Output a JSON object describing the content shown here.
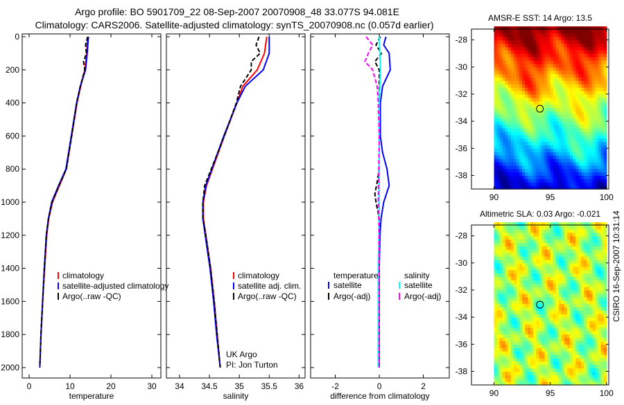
{
  "title_line1": "Argo profile: BO 5901709_22 08-Sep-2007 20070908_48 33.077S 94.081E",
  "title_line2": "Climatology: CARS2006. Satellite-adjusted climatology: synTS_20070908.nc (0.057d earlier)",
  "side_stamp": "CSIRO 16-Sep-2007 10:31:14",
  "colors": {
    "red": "#ff0000",
    "blue": "#0000ff",
    "black": "#000000",
    "cyan": "#00ffff",
    "magenta": "#ff00ff"
  },
  "chart_data": [
    {
      "type": "line",
      "xlabel": "temperature",
      "xlim": [
        -1.7,
        32.2
      ],
      "xticks": [
        0,
        10,
        20,
        30
      ],
      "ylim": [
        -17,
        2063
      ],
      "yticks": [
        0,
        200,
        400,
        600,
        800,
        1000,
        1200,
        1400,
        1600,
        1800,
        2000
      ],
      "y_reversed": true,
      "legend": [
        "climatology",
        "satellite-adjusted climatology",
        "Argo(..raw -QC)"
      ],
      "legend_placement": "bottom-right",
      "series": [
        {
          "name": "climatology",
          "color": "#ff0000",
          "dash": false,
          "depth": [
            0,
            100,
            200,
            300,
            400,
            600,
            800,
            900,
            1000,
            1100,
            1200,
            1400,
            1600,
            1800,
            2000
          ],
          "values": [
            14.3,
            14.1,
            13.6,
            12.6,
            11.7,
            10.4,
            9.1,
            7.4,
            5.7,
            4.8,
            4.3,
            3.8,
            3.3,
            2.9,
            2.6
          ]
        },
        {
          "name": "satellite-adjusted climatology",
          "color": "#0000ff",
          "dash": false,
          "depth": [
            0,
            100,
            200,
            300,
            400,
            600,
            800,
            900,
            1000,
            1100,
            1200,
            1400,
            1600,
            1800,
            2000
          ],
          "values": [
            14.5,
            14.2,
            13.8,
            12.5,
            11.6,
            10.3,
            9.0,
            7.2,
            5.5,
            4.7,
            4.2,
            3.7,
            3.3,
            2.9,
            2.6
          ]
        },
        {
          "name": "Argo(..raw -QC)",
          "color": "#000000",
          "dash": true,
          "depth": [
            0,
            50,
            100,
            150,
            200,
            300,
            400,
            600,
            800,
            900,
            1000,
            1100,
            1200,
            1400,
            1600,
            1800,
            2000
          ],
          "values": [
            14.3,
            13.8,
            14.0,
            13.3,
            13.6,
            12.5,
            11.6,
            10.4,
            9.1,
            7.3,
            5.6,
            4.7,
            4.2,
            3.7,
            3.3,
            2.9,
            2.6
          ]
        }
      ]
    },
    {
      "type": "line",
      "xlabel": "salinity",
      "xlim": [
        33.78,
        36.1
      ],
      "xticks": [
        34,
        34.5,
        35,
        35.5,
        36
      ],
      "ylim": [
        -17,
        2063
      ],
      "y_reversed": true,
      "legend": [
        "climatology",
        "satellite adj. clim.",
        "Argo(..raw -QC)"
      ],
      "legend_placement": "bottom-right",
      "annotation": [
        "UK Argo",
        "PI: Jon Turton"
      ],
      "series": [
        {
          "name": "climatology",
          "color": "#ff0000",
          "dash": false,
          "depth": [
            0,
            100,
            200,
            300,
            400,
            600,
            800,
            900,
            1000,
            1100,
            1200,
            1400,
            1600,
            1800,
            2000
          ],
          "values": [
            35.46,
            35.42,
            35.3,
            35.06,
            34.96,
            34.75,
            34.55,
            34.45,
            34.4,
            34.4,
            34.44,
            34.52,
            34.58,
            34.63,
            34.68
          ]
        },
        {
          "name": "satellite adj. clim.",
          "color": "#0000ff",
          "dash": false,
          "depth": [
            0,
            100,
            200,
            300,
            400,
            600,
            800,
            900,
            1000,
            1100,
            1200,
            1400,
            1600,
            1800,
            2000
          ],
          "values": [
            35.5,
            35.5,
            35.4,
            35.1,
            34.96,
            34.74,
            34.54,
            34.44,
            34.39,
            34.39,
            34.43,
            34.51,
            34.57,
            34.62,
            34.68
          ]
        },
        {
          "name": "Argo(..raw -QC)",
          "color": "#000000",
          "dash": true,
          "depth": [
            0,
            50,
            100,
            150,
            200,
            300,
            400,
            600,
            800,
            900,
            1000,
            1100,
            1200,
            1400,
            1600,
            1800,
            2000
          ],
          "values": [
            35.33,
            35.28,
            35.35,
            35.2,
            35.2,
            35.02,
            34.95,
            34.75,
            34.53,
            34.42,
            34.39,
            34.39,
            34.44,
            34.52,
            34.58,
            34.63,
            34.68
          ]
        }
      ]
    },
    {
      "type": "line",
      "xlabel": "difference from climatology",
      "xlim": [
        -3.12,
        3.18
      ],
      "xticks": [
        -2,
        0,
        2
      ],
      "ylim": [
        -17,
        2063
      ],
      "y_reversed": true,
      "legend_headers": [
        "temperature",
        "salinity"
      ],
      "legend": [
        "satellite",
        "Argo(-adj)",
        "satellite",
        "Argo(-adj)"
      ],
      "legend_placement": "bottom",
      "series": [
        {
          "name": "temperature satellite",
          "color": "#0000ff",
          "dash": false,
          "depth": [
            0,
            50,
            100,
            200,
            300,
            400,
            600,
            700,
            800,
            900,
            1000,
            1100,
            1200,
            1400,
            1600,
            1800,
            2000
          ],
          "values": [
            0.3,
            0.2,
            0.45,
            0.5,
            0.15,
            0.05,
            0.05,
            0.15,
            0.35,
            0.45,
            0.2,
            0.08,
            0.03,
            0.0,
            0.0,
            0.0,
            0.0
          ]
        },
        {
          "name": "temperature Argo(-adj)",
          "color": "#000000",
          "dash": true,
          "depth": [
            0,
            50,
            100,
            150,
            200,
            300,
            600,
            800,
            880,
            950,
            1000,
            1100,
            2000
          ],
          "values": [
            0.05,
            -0.15,
            0.1,
            -0.2,
            0.0,
            0.0,
            0.0,
            0.0,
            -0.1,
            -0.2,
            -0.15,
            0.0,
            0.0
          ]
        },
        {
          "name": "salinity satellite",
          "color": "#00ffff",
          "dash": false,
          "depth": [
            0,
            200,
            400,
            1000,
            1400,
            2000
          ],
          "values": [
            0.0,
            0.05,
            0.0,
            0.0,
            -0.05,
            -0.05
          ]
        },
        {
          "name": "salinity Argo(-adj)",
          "color": "#ff00ff",
          "dash": true,
          "depth": [
            0,
            50,
            100,
            150,
            200,
            300,
            400,
            600,
            1000,
            1200,
            2000
          ],
          "values": [
            -0.6,
            -0.3,
            -0.5,
            -0.65,
            -0.3,
            -0.1,
            -0.05,
            0.0,
            -0.05,
            0.0,
            0.0
          ]
        }
      ]
    },
    {
      "type": "heatmap",
      "title": "AMSR-E SST: 14 Argo: 13.5",
      "xlim": [
        88,
        100.2
      ],
      "xticks": [
        90,
        95,
        100
      ],
      "ylim": [
        -39,
        -27.2
      ],
      "yticks": [
        -28,
        -30,
        -32,
        -34,
        -36,
        -38
      ],
      "data_lon_range": [
        90,
        100
      ],
      "marker": {
        "lon": 94.081,
        "lat": -33.077
      }
    },
    {
      "type": "heatmap",
      "title": "Altimetric SLA: 0.03 Argo: -0.021",
      "xlim": [
        88,
        100.2
      ],
      "xticks": [
        90,
        95,
        100
      ],
      "ylim": [
        -39,
        -27.2
      ],
      "yticks": [
        -28,
        -30,
        -32,
        -34,
        -36,
        -38
      ],
      "data_lon_range": [
        90,
        100
      ],
      "marker": {
        "lon": 94.081,
        "lat": -33.077
      }
    }
  ]
}
